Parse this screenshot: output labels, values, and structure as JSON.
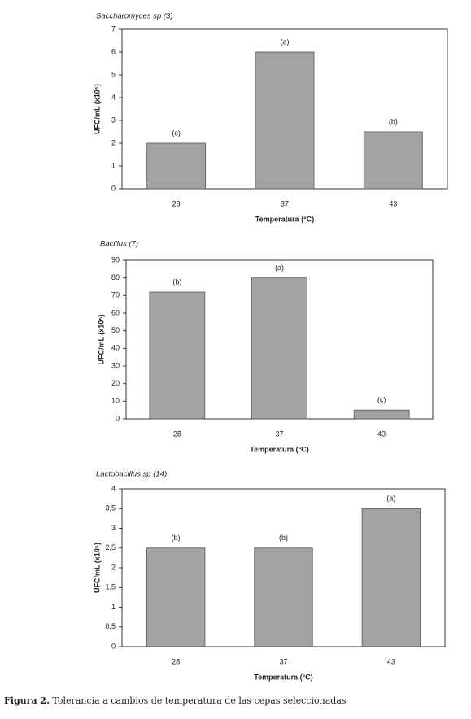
{
  "chart_data": [
    {
      "type": "bar",
      "title": "Saccharomyces sp (3)",
      "categories": [
        "28",
        "37",
        "43"
      ],
      "values": [
        2,
        6,
        2.5
      ],
      "annotations": [
        "(c)",
        "(a)",
        "(b)"
      ],
      "color": "#a3a3a5",
      "ylim": [
        0,
        7
      ],
      "yticks": [
        0,
        1,
        2,
        3,
        4,
        5,
        6,
        7
      ],
      "xlabel": "Temperatura (°C)",
      "ylabel": "UFC/mL (x10⁵)"
    },
    {
      "type": "bar",
      "title": "Bacillus (7)",
      "categories": [
        "28",
        "37",
        "43"
      ],
      "values": [
        72,
        80,
        5
      ],
      "annotations": [
        "(b)",
        "(a)",
        "(c)"
      ],
      "color": "#a3a3a5",
      "ylim": [
        0,
        90
      ],
      "yticks": [
        0,
        10,
        20,
        30,
        40,
        50,
        60,
        70,
        80,
        90
      ],
      "xlabel": "Temperatura (°C)",
      "ylabel": "UFC/mL (x10⁵)"
    },
    {
      "type": "bar",
      "title": "Lactobacillus sp (14)",
      "categories": [
        "28",
        "37",
        "43"
      ],
      "values": [
        2.5,
        2.5,
        3.5
      ],
      "annotations": [
        "(b)",
        "(b)",
        "(a)"
      ],
      "color": "#a3a3a5",
      "ylim": [
        0,
        4
      ],
      "yticks": [
        0,
        {
          "value": 0.5,
          "label": "0,5"
        },
        1,
        {
          "value": 1.5,
          "label": "1,5"
        },
        2,
        {
          "value": 2.5,
          "label": "2,5"
        },
        3,
        {
          "value": 3.5,
          "label": "3,5"
        },
        4
      ],
      "xlabel": "Temperatura (°C)",
      "ylabel": "UFC/mL (x10⁵)"
    }
  ],
  "caption": {
    "label": "Figura 2.",
    "text": "Tolerancia a cambios de temperatura de las cepas seleccionadas"
  }
}
